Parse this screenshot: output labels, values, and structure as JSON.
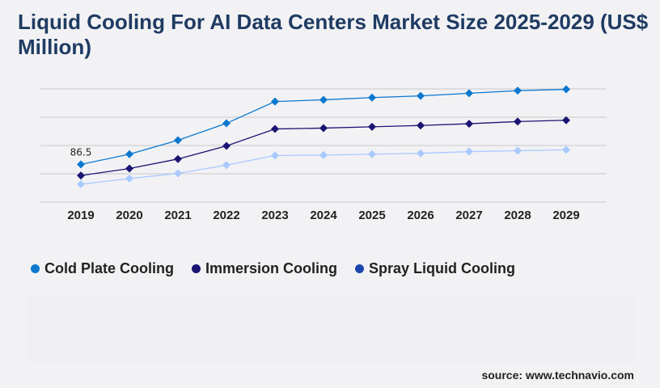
{
  "title": "Liquid Cooling For AI Data Centers Market Size 2025-2029 (US$ Million)",
  "source": "source: www.technavio.com",
  "chart_data": {
    "type": "line",
    "title": "Liquid Cooling For AI Data Centers Market Size 2025-2029 (US$ Million)",
    "xlabel": "",
    "ylabel": "",
    "categories": [
      "2019",
      "2020",
      "2021",
      "2022",
      "2023",
      "2024",
      "2025",
      "2026",
      "2027",
      "2028",
      "2029"
    ],
    "ylim": [
      0,
      260
    ],
    "grid": true,
    "y_tick_labels_shown": false,
    "legend_placement": "bottom-left",
    "series": [
      {
        "name": "Cold Plate Cooling",
        "color": "#0a78cf",
        "legend_color": "#0a78cf",
        "values": [
          86.5,
          110,
          142,
          181,
          231,
          235,
          240,
          244,
          250,
          256,
          259
        ]
      },
      {
        "name": "Immersion Cooling",
        "color": "#1a1472",
        "legend_color": "#1a1472",
        "values": [
          61,
          77,
          99,
          129,
          168,
          170,
          173,
          176,
          180,
          185,
          188
        ]
      },
      {
        "name": "Spray Liquid Cooling",
        "color": "#a9c9ff",
        "legend_color": "#1b46ae",
        "values": [
          41,
          54,
          66,
          85,
          107,
          108,
          110,
          112,
          116,
          118,
          120
        ]
      }
    ],
    "data_labels": [
      {
        "series": "Cold Plate Cooling",
        "category": "2019",
        "text": "86.5"
      }
    ]
  }
}
